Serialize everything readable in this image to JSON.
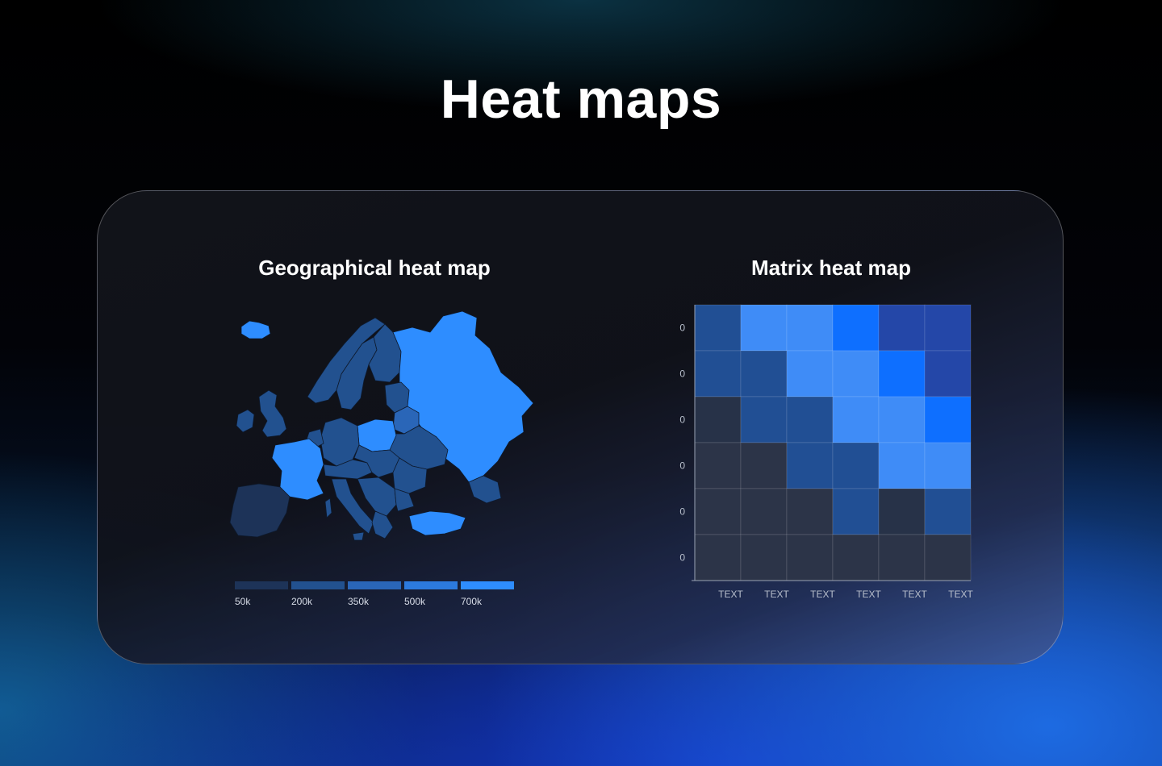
{
  "page": {
    "title": "Heat maps"
  },
  "colors": {
    "scale": [
      "#1d3358",
      "#22518f",
      "#2a66b8",
      "#2c7ade",
      "#2e8dff"
    ]
  },
  "chart_data": [
    {
      "type": "heatmap",
      "title": "Geographical heat map",
      "legend": {
        "labels": [
          "50k",
          "200k",
          "350k",
          "500k",
          "700k"
        ],
        "placement": "bottom"
      }
    },
    {
      "type": "heatmap",
      "title": "Matrix heat map",
      "x_labels": [
        "TEXT",
        "TEXT",
        "TEXT",
        "TEXT",
        "TEXT",
        "TEXT"
      ],
      "y_labels": [
        "0",
        "0",
        "0",
        "0",
        "0",
        "0"
      ],
      "grid": true,
      "values": [
        [
          3,
          6,
          6,
          8,
          4,
          4
        ],
        [
          3,
          3,
          6,
          6,
          8,
          4
        ],
        [
          1,
          3,
          3,
          6,
          6,
          8
        ],
        [
          0,
          0,
          3,
          3,
          6,
          6
        ],
        [
          0,
          0,
          0,
          3,
          1,
          3
        ],
        [
          0,
          0,
          0,
          0,
          0,
          0
        ]
      ]
    }
  ]
}
